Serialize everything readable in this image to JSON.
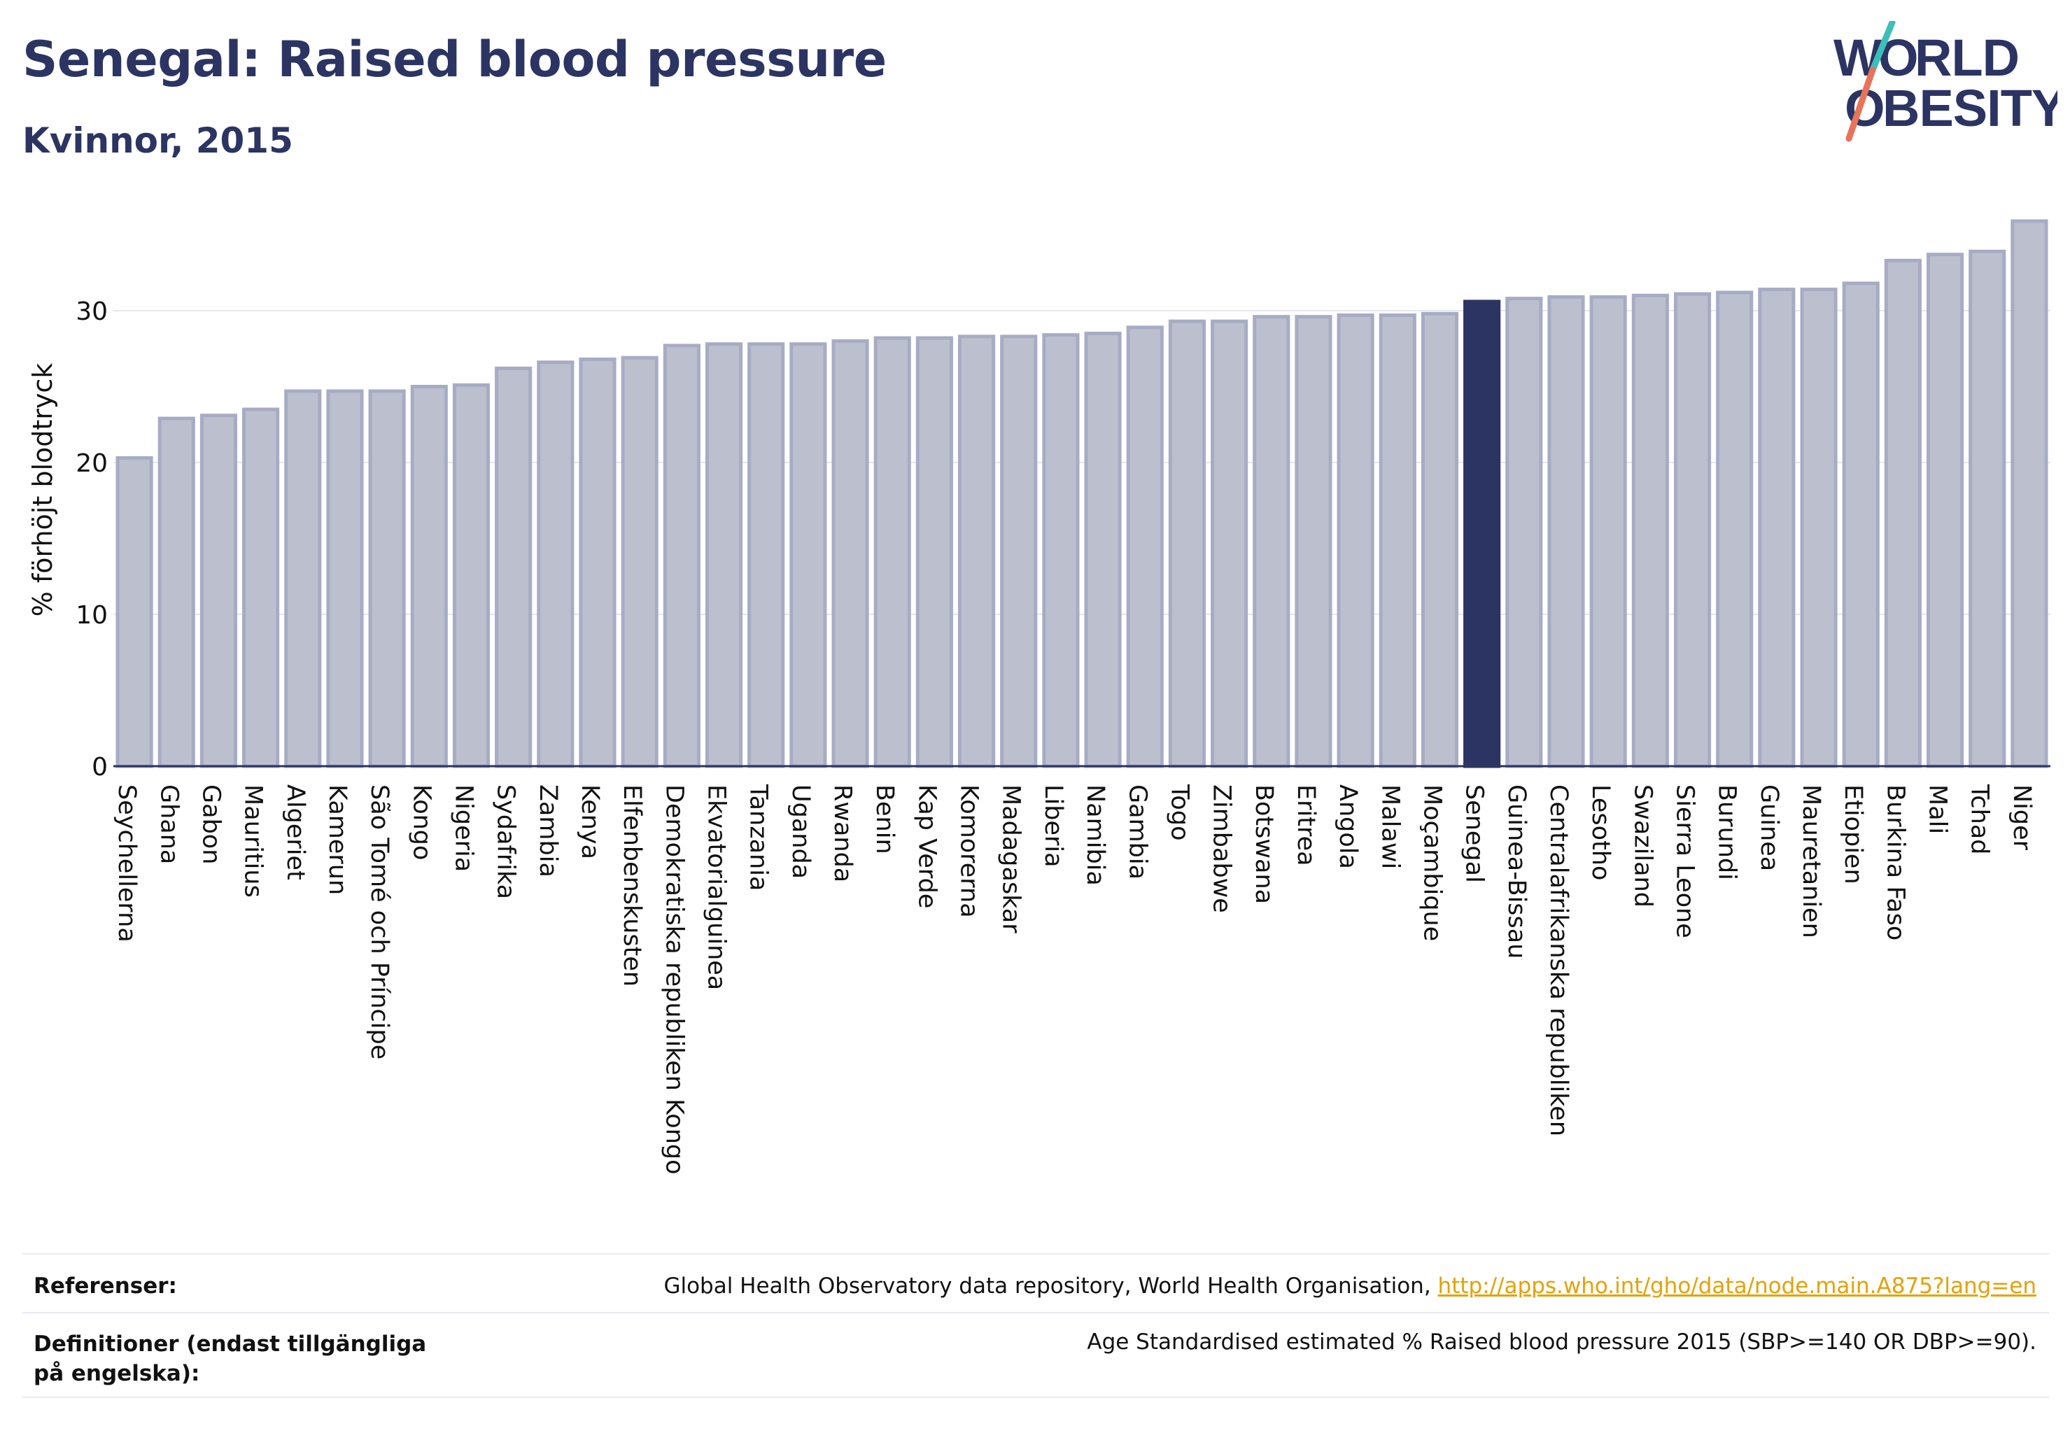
{
  "header": {
    "title": "Senegal: Raised blood pressure",
    "subtitle": "Kvinnor, 2015"
  },
  "logo": {
    "line1": "W",
    "line1b": "RLD",
    "line2": "BESITY",
    "text_color": "#2b3462",
    "accent_teal": "#3bbfb8",
    "accent_coral": "#e8735a"
  },
  "chart_data": {
    "type": "bar",
    "title": "Senegal: Raised blood pressure",
    "subtitle": "Kvinnor, 2015",
    "xlabel": "",
    "ylabel": "% förhöjt blodtryck",
    "ylim": [
      0,
      36
    ],
    "yticks": [
      0,
      10,
      20,
      30
    ],
    "grid": true,
    "highlight": "Senegal",
    "colors": {
      "bar": "#bcc0ce",
      "bar_border": "#a7acc4",
      "highlight": "#2b3462",
      "grid": "#e6e7ee",
      "axis": "#2b3462"
    },
    "categories": [
      "Seychellerna",
      "Ghana",
      "Gabon",
      "Mauritius",
      "Algeriet",
      "Kamerun",
      "São Tomé och Príncipe",
      "Kongo",
      "Nigeria",
      "Sydafrika",
      "Zambia",
      "Kenya",
      "Elfenbenskusten",
      "Demokratiska republiken Kongo",
      "Ekvatorialguinea",
      "Tanzania",
      "Uganda",
      "Rwanda",
      "Benin",
      "Kap Verde",
      "Komorerna",
      "Madagaskar",
      "Liberia",
      "Namibia",
      "Gambia",
      "Togo",
      "Zimbabwe",
      "Botswana",
      "Eritrea",
      "Angola",
      "Malawi",
      "Moçambique",
      "Senegal",
      "Guinea-Bissau",
      "Centralafrikanska republiken",
      "Lesotho",
      "Swaziland",
      "Sierra Leone",
      "Burundi",
      "Guinea",
      "Mauretanien",
      "Etiopien",
      "Burkina Faso",
      "Mali",
      "Tchad",
      "Niger"
    ],
    "values": [
      20.3,
      22.9,
      23.1,
      23.5,
      24.7,
      24.7,
      24.7,
      25.0,
      25.1,
      26.2,
      26.6,
      26.8,
      26.9,
      27.7,
      27.8,
      27.8,
      27.8,
      28.0,
      28.2,
      28.2,
      28.3,
      28.3,
      28.4,
      28.5,
      28.9,
      29.3,
      29.3,
      29.6,
      29.6,
      29.7,
      29.7,
      29.8,
      30.6,
      30.8,
      30.9,
      30.9,
      31.0,
      31.1,
      31.2,
      31.4,
      31.4,
      31.8,
      33.3,
      33.7,
      33.9,
      35.9
    ]
  },
  "footer": {
    "references_label": "Referenser:",
    "references_text": "Global Health Observatory data repository, World Health Organisation, ",
    "references_link": "http://apps.who.int/gho/data/node.main.A875?lang=en",
    "definitions_label": "Definitioner (endast tillgängliga på engelska):",
    "definitions_text": "Age Standardised estimated % Raised blood pressure 2015 (SBP>=140 OR DBP>=90)."
  }
}
